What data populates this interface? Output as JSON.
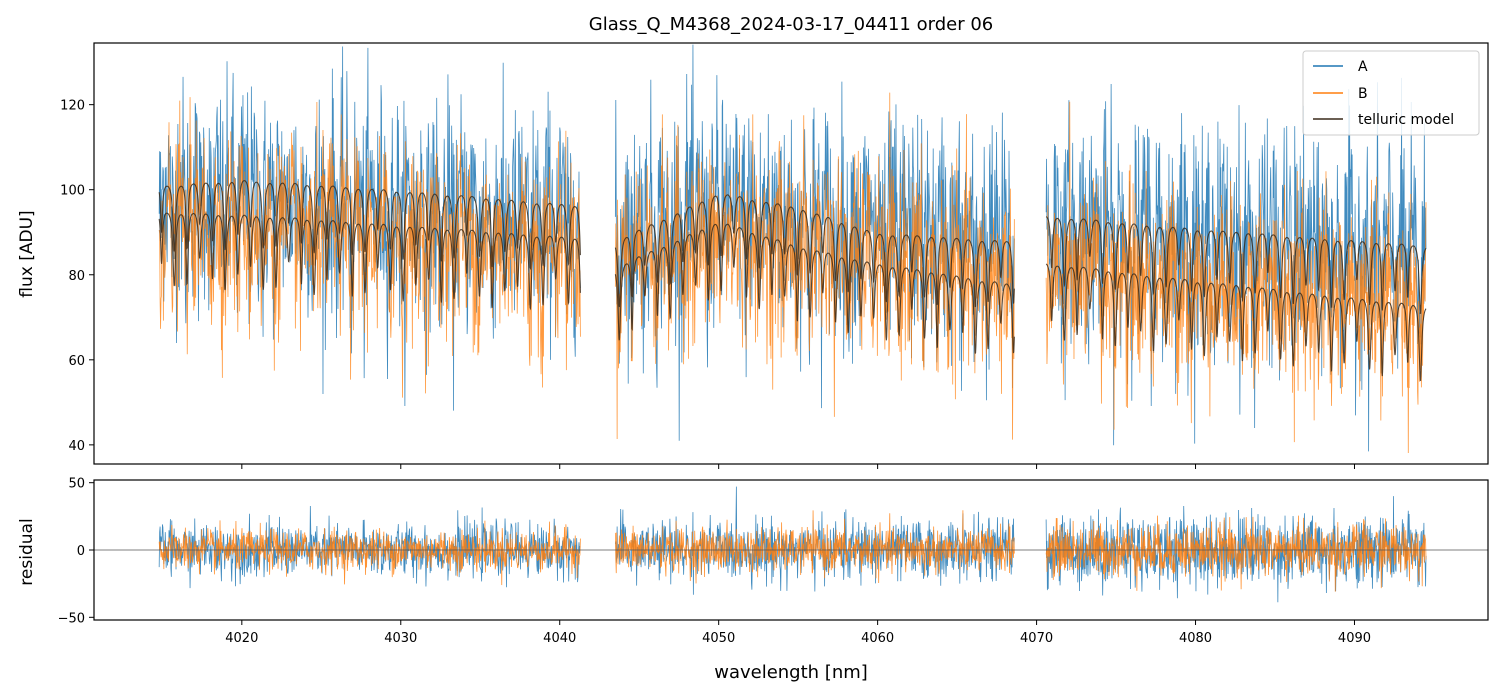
{
  "title": "Glass_Q_M4368_2024-03-17_04411  order 06",
  "colors": {
    "A": "#1f77b4",
    "B": "#ff7f0e",
    "model": "#3a2a1a",
    "zero": "#555555"
  },
  "top_panel": {
    "ylabel": "flux [ADU]",
    "yticks": [
      "40",
      "60",
      "80",
      "100",
      "120"
    ],
    "legend": {
      "placement": "upper-right",
      "entries": [
        "A",
        "B",
        "telluric model"
      ]
    }
  },
  "bottom_panel": {
    "ylabel": "residual",
    "yticks": [
      "50",
      "0",
      "−50"
    ]
  },
  "xlabel": "wavelength [nm]",
  "xticks": [
    "4020",
    "4030",
    "4040",
    "4050",
    "4060",
    "4070",
    "4080",
    "4090"
  ],
  "chart_data": [
    {
      "type": "line",
      "panel": "top",
      "title": "Glass_Q_M4368_2024-03-17_04411  order 06",
      "xlabel": "",
      "ylabel": "flux [ADU]",
      "xlim": [
        4010.7,
        4098.4
      ],
      "ylim": [
        35.5,
        134.5
      ],
      "grid": false,
      "legend": "top-right",
      "segments": [
        [
          4014.8,
          4041.3
        ],
        [
          4043.5,
          4068.6
        ],
        [
          4070.6,
          4094.5
        ]
      ],
      "series": [
        {
          "name": "A",
          "description": "noisy spectrum",
          "continuum": [
            [
              4014.8,
              103
            ],
            [
              4041.3,
              96
            ],
            [
              4043.5,
              94
            ],
            [
              4050,
              99
            ],
            [
              4055,
              97
            ],
            [
              4068.6,
              91
            ],
            [
              4070.6,
              95
            ],
            [
              4094.5,
              88
            ]
          ],
          "noise_amplitude": 22
        },
        {
          "name": "B",
          "description": "noisy spectrum",
          "continuum": [
            [
              4014.8,
              96
            ],
            [
              4041.3,
              90
            ],
            [
              4043.5,
              88
            ],
            [
              4050,
              92
            ],
            [
              4055,
              90
            ],
            [
              4068.6,
              82
            ],
            [
              4070.6,
              84
            ],
            [
              4094.5,
              78
            ]
          ],
          "noise_amplitude": 18
        },
        {
          "name": "telluric model",
          "continuum_upper": [
            [
              4014.8,
              102
            ],
            [
              4020,
              103.5
            ],
            [
              4030,
              101
            ],
            [
              4041.3,
              97.5
            ],
            [
              4043.5,
              89
            ],
            [
              4050,
              100.5
            ],
            [
              4055,
              97
            ],
            [
              4060,
              91
            ],
            [
              4068.6,
              89
            ],
            [
              4070.6,
              95
            ],
            [
              4080,
              92
            ],
            [
              4094.5,
              88
            ]
          ],
          "continuum_lower": [
            [
              4014.8,
              96
            ],
            [
              4020,
              95.5
            ],
            [
              4030,
              93
            ],
            [
              4041.3,
              90
            ],
            [
              4043.5,
              83
            ],
            [
              4050,
              94
            ],
            [
              4055,
              88
            ],
            [
              4060,
              84
            ],
            [
              4068.6,
              79
            ],
            [
              4070.6,
              84
            ],
            [
              4080,
              80
            ],
            [
              4094.5,
              74
            ]
          ],
          "line_spacing_nm": 0.8,
          "typical_line_depth": 18
        }
      ]
    },
    {
      "type": "line",
      "panel": "bottom",
      "xlabel": "wavelength [nm]",
      "ylabel": "residual",
      "xlim": [
        4010.7,
        4098.4
      ],
      "ylim": [
        -52,
        52
      ],
      "grid": false,
      "zero_line": 0,
      "segments": [
        [
          4014.8,
          4041.3
        ],
        [
          4043.5,
          4068.6
        ],
        [
          4070.6,
          4094.5
        ]
      ],
      "series": [
        {
          "name": "A",
          "center": 0,
          "noise_amplitude": [
            18,
            20,
            24
          ]
        },
        {
          "name": "B",
          "center": 0,
          "noise_amplitude": [
            14,
            15,
            18
          ]
        }
      ]
    }
  ]
}
